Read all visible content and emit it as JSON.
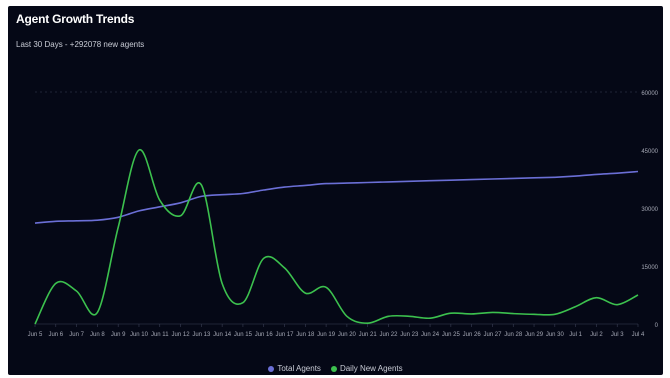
{
  "header": {
    "title": "Agent Growth Trends",
    "subtitle": "Last 30 Days - +292078 new agents"
  },
  "legend": {
    "total_label": "Total Agents",
    "daily_label": "Daily New Agents"
  },
  "chart_data": {
    "type": "line",
    "title": "Agent Growth Trends",
    "subtitle": "Last 30 Days - +292078 new agents",
    "categories": [
      "Jun 5",
      "Jun 6",
      "Jun 7",
      "Jun 8",
      "Jun 9",
      "Jun 10",
      "Jun 11",
      "Jun 12",
      "Jun 13",
      "Jun 14",
      "Jun 15",
      "Jun 16",
      "Jun 17",
      "Jun 18",
      "Jun 19",
      "Jun 20",
      "Jun 21",
      "Jun 22",
      "Jun 23",
      "Jun 24",
      "Jun 25",
      "Jun 26",
      "Jun 27",
      "Jun 28",
      "Jun 29",
      "Jun 30",
      "Jul 1",
      "Jul 2",
      "Jul 3",
      "Jul 4"
    ],
    "series": [
      {
        "name": "Total Agents",
        "axis": "left",
        "color": "#6b6fd6",
        "values": [
          1740000,
          1770000,
          1780000,
          1790000,
          1840000,
          1950000,
          2020000,
          2090000,
          2200000,
          2230000,
          2250000,
          2310000,
          2360000,
          2390000,
          2420000,
          2430000,
          2440000,
          2450000,
          2460000,
          2470000,
          2480000,
          2490000,
          2500000,
          2510000,
          2520000,
          2530000,
          2550000,
          2580000,
          2600000,
          2630000
        ]
      },
      {
        "name": "Daily New Agents",
        "axis": "right",
        "color": "#3cc14e",
        "values": [
          0,
          10500,
          8500,
          3000,
          25000,
          45000,
          32000,
          28000,
          36000,
          10500,
          5500,
          17000,
          14500,
          8000,
          9500,
          2000,
          200,
          2000,
          2000,
          1500,
          2800,
          2600,
          3000,
          2700,
          2500,
          2500,
          4500,
          6800,
          5000,
          7500
        ]
      }
    ],
    "y_left": {
      "ticks": [
        "",
        "",
        "",
        "",
        ""
      ],
      "range": [
        0,
        4000000
      ]
    },
    "y_right": {
      "ticks": [
        "0",
        "15000",
        "30000",
        "45000",
        "60000"
      ],
      "range": [
        0,
        60000
      ]
    },
    "grid": "horizontal-dashed-top",
    "legend_position": "bottom"
  }
}
